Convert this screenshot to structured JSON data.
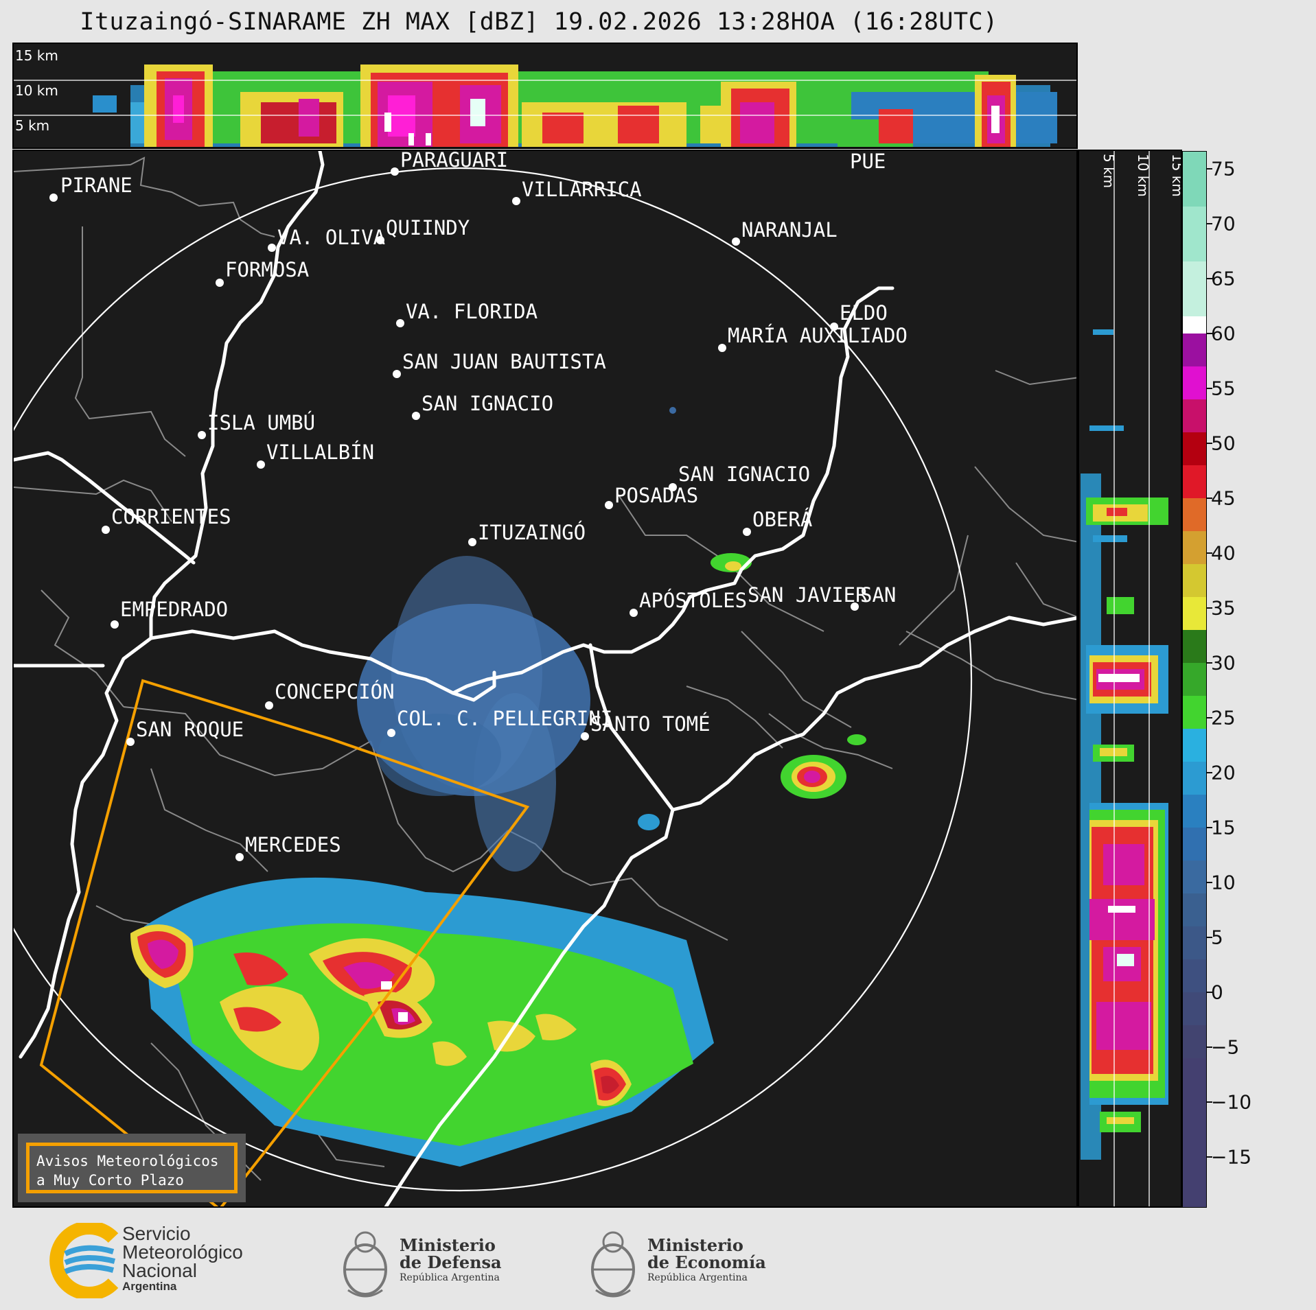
{
  "title": "Ituzaingó-SINARAME ZH MAX [dBZ] 19.02.2026 13:28HOA (16:28UTC)",
  "top_panel": {
    "altitude_labels": [
      "15 km",
      "10 km",
      "5 km"
    ]
  },
  "side_panel": {
    "altitude_labels": [
      "5 km",
      "10 km",
      "15 km"
    ]
  },
  "colorbar": {
    "unit": "dBZ",
    "ticks": [
      "75",
      "70",
      "65",
      "60",
      "55",
      "50",
      "45",
      "40",
      "35",
      "30",
      "25",
      "20",
      "15",
      "10",
      "5",
      "0",
      "−5",
      "−10",
      "−15"
    ],
    "range": [
      -20,
      77
    ]
  },
  "cities": [
    {
      "name": "PIRANE"
    },
    {
      "name": "PARAGUARÍ"
    },
    {
      "name": "VILLARRICA"
    },
    {
      "name": "PUE"
    },
    {
      "name": "QUIINDY"
    },
    {
      "name": "VA. OLIVA"
    },
    {
      "name": "NARANJAL"
    },
    {
      "name": "FORMOSA"
    },
    {
      "name": "VA. FLORIDA"
    },
    {
      "name": "ELDO"
    },
    {
      "name": "MARÍA AUXILIADO"
    },
    {
      "name": "SAN JUAN BAUTISTA"
    },
    {
      "name": "SAN IGNACIO"
    },
    {
      "name": "ISLA UMBÚ"
    },
    {
      "name": "VILLALBÍN"
    },
    {
      "name": "SAN IGNACIO"
    },
    {
      "name": "POSADAS"
    },
    {
      "name": "CORRIENTES"
    },
    {
      "name": "ITUZAINGÓ"
    },
    {
      "name": "OBERÁ"
    },
    {
      "name": "EMPEDRADO"
    },
    {
      "name": "APÓSTOLES"
    },
    {
      "name": "SAN JAVIER"
    },
    {
      "name": "SAN"
    },
    {
      "name": "CONCEPCIÓN"
    },
    {
      "name": "COL. C. PELLEGRINI"
    },
    {
      "name": "SANTO TOMÉ"
    },
    {
      "name": "SAN ROQUE"
    },
    {
      "name": "MERCEDES"
    }
  ],
  "warning_box": {
    "line1": "Avisos Meteorológicos",
    "line2": "a Muy Corto Plazo"
  },
  "footer": {
    "smn": {
      "line1": "Servicio",
      "line2": "Meteorológico",
      "line3": "Nacional",
      "line4": "Argentina"
    },
    "defensa": {
      "line1": "Ministerio",
      "line2": "de Defensa",
      "line3": "República Argentina"
    },
    "economia": {
      "line1": "Ministerio",
      "line2": "de Economía",
      "line3": "República Argentina"
    }
  },
  "colors": {
    "background": "#1b1b1b",
    "border_river": "#ffffff",
    "warning_polygon": "#f5a000",
    "range_ring": "#ffffff"
  }
}
